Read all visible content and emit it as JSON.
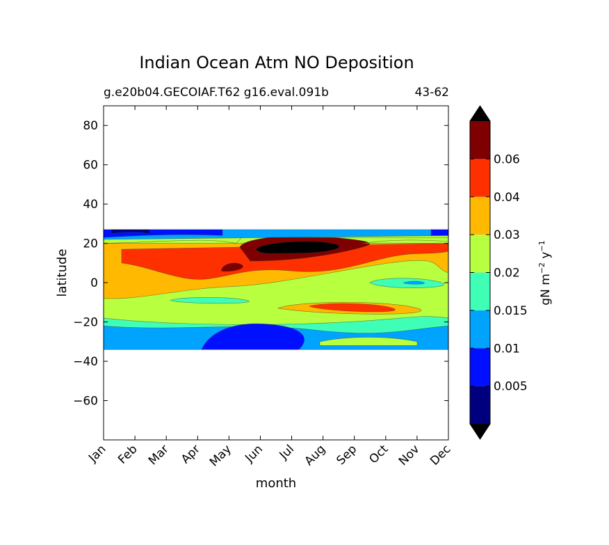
{
  "chart_data": {
    "type": "contour",
    "title": "Indian Ocean Atm NO Deposition",
    "subtitle_left": "g.e20b04.GECOIAF.T62 g16.eval.091b",
    "subtitle_right": "43-62",
    "xlabel": "month",
    "ylabel": "latitude",
    "x_categories": [
      "Jan",
      "Feb",
      "Mar",
      "Apr",
      "May",
      "Jun",
      "Jul",
      "Aug",
      "Sep",
      "Oct",
      "Nov",
      "Dec"
    ],
    "ylim": [
      -80,
      90
    ],
    "yticks": [
      80,
      60,
      40,
      20,
      0,
      -20,
      -40,
      -60
    ],
    "ytick_labels": [
      "80",
      "60",
      "40",
      "20",
      "0",
      "−20",
      "−40",
      "−60"
    ],
    "data_lat_range": [
      -34,
      27
    ],
    "colorbar": {
      "label_main": "gN m",
      "label_exp1": "−2",
      "label_mid": " y",
      "label_exp2": "−1",
      "ticks": [
        "0.005",
        "0.01",
        "0.015",
        "0.02",
        "0.03",
        "0.04",
        "0.06"
      ],
      "colors": [
        "#00007f",
        "#0010ff",
        "#00a4ff",
        "#3fffb7",
        "#b7ff3f",
        "#ffb900",
        "#ff3000",
        "#7f0000"
      ],
      "extend_low_color": "#000000",
      "extend_high_color": "#000000"
    },
    "approx_field": {
      "note_levels_index": "0..7 map to colorbar colors; rows from north (27N) to south (34S)",
      "bands": [
        {
          "lat": [
            22,
            27
          ],
          "level": 1
        },
        {
          "lat": [
            15,
            22
          ],
          "level": 5
        },
        {
          "lat": [
            0,
            15
          ],
          "level": 5
        },
        {
          "lat": [
            -10,
            0
          ],
          "level": 4
        },
        {
          "lat": [
            -18,
            -10
          ],
          "level": 4
        },
        {
          "lat": [
            -23,
            -18
          ],
          "level": 3
        },
        {
          "lat": [
            -34,
            -23
          ],
          "level": 2
        }
      ]
    }
  }
}
